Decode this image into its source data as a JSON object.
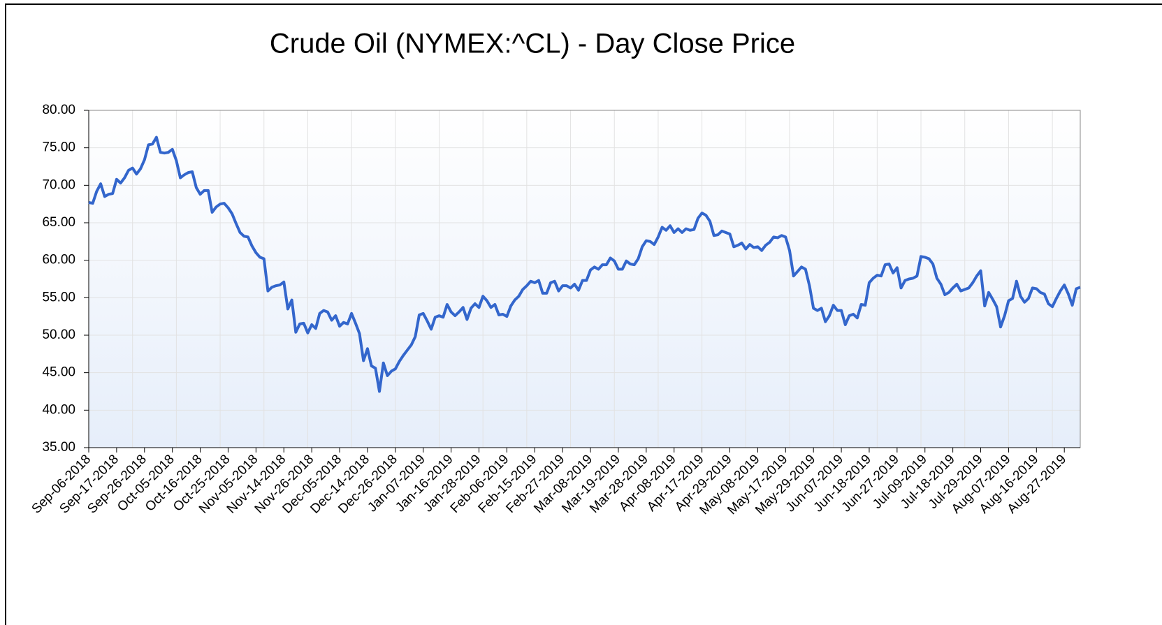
{
  "chart_data": {
    "type": "line",
    "title": "Crude Oil (NYMEX:^CL) - Day Close Price",
    "categories": [
      "Sep-06-2018",
      null,
      null,
      null,
      null,
      null,
      null,
      "Sep-17-2018",
      null,
      null,
      null,
      null,
      null,
      null,
      "Sep-26-2018",
      null,
      null,
      null,
      null,
      null,
      null,
      "Oct-05-2018",
      null,
      null,
      null,
      null,
      null,
      null,
      "Oct-16-2018",
      null,
      null,
      null,
      null,
      null,
      null,
      "Oct-25-2018",
      null,
      null,
      null,
      null,
      null,
      null,
      "Nov-05-2018",
      null,
      null,
      null,
      null,
      null,
      null,
      "Nov-14-2018",
      null,
      null,
      null,
      null,
      null,
      null,
      "Nov-26-2018",
      null,
      null,
      null,
      null,
      null,
      null,
      "Dec-05-2018",
      null,
      null,
      null,
      null,
      null,
      null,
      "Dec-14-2018",
      null,
      null,
      null,
      null,
      null,
      null,
      "Dec-26-2018",
      null,
      null,
      null,
      null,
      null,
      null,
      "Jan-07-2019",
      null,
      null,
      null,
      null,
      null,
      null,
      "Jan-16-2019",
      null,
      null,
      null,
      null,
      null,
      null,
      "Jan-28-2019",
      null,
      null,
      null,
      null,
      null,
      null,
      "Feb-06-2019",
      null,
      null,
      null,
      null,
      null,
      null,
      "Feb-15-2019",
      null,
      null,
      null,
      null,
      null,
      null,
      "Feb-27-2019",
      null,
      null,
      null,
      null,
      null,
      null,
      "Mar-08-2019",
      null,
      null,
      null,
      null,
      null,
      null,
      "Mar-19-2019",
      null,
      null,
      null,
      null,
      null,
      null,
      "Mar-28-2019",
      null,
      null,
      null,
      null,
      null,
      null,
      "Apr-08-2019",
      null,
      null,
      null,
      null,
      null,
      null,
      "Apr-17-2019",
      null,
      null,
      null,
      null,
      null,
      null,
      "Apr-29-2019",
      null,
      null,
      null,
      null,
      null,
      null,
      "May-08-2019",
      null,
      null,
      null,
      null,
      null,
      null,
      "May-17-2019",
      null,
      null,
      null,
      null,
      null,
      null,
      "May-29-2019",
      null,
      null,
      null,
      null,
      null,
      null,
      "Jun-07-2019",
      null,
      null,
      null,
      null,
      null,
      null,
      "Jun-18-2019",
      null,
      null,
      null,
      null,
      null,
      null,
      "Jun-27-2019",
      null,
      null,
      null,
      null,
      null,
      null,
      "Jul-09-2019",
      null,
      null,
      null,
      null,
      null,
      null,
      "Jul-18-2019",
      null,
      null,
      null,
      null,
      null,
      null,
      "Jul-29-2019",
      null,
      null,
      null,
      null,
      null,
      null,
      "Aug-07-2019",
      null,
      null,
      null,
      null,
      null,
      null,
      "Aug-16-2019",
      null,
      null,
      null,
      null,
      null,
      null,
      "Aug-27-2019",
      null,
      null,
      null,
      null
    ],
    "values": [
      67.7,
      67.6,
      69.2,
      70.2,
      68.5,
      68.8,
      68.9,
      70.8,
      70.3,
      71,
      72,
      72.3,
      71.5,
      72.2,
      73.4,
      75.4,
      75.5,
      76.4,
      74.4,
      74.3,
      74.4,
      74.8,
      73.3,
      71,
      71.4,
      71.7,
      71.8,
      69.7,
      68.8,
      69.3,
      69.3,
      66.4,
      67.1,
      67.5,
      67.6,
      67,
      66.2,
      64.9,
      63.7,
      63.2,
      63.1,
      61.9,
      61,
      60.4,
      60.2,
      55.9,
      56.4,
      56.6,
      56.7,
      57.1,
      53.5,
      54.7,
      50.4,
      51.5,
      51.6,
      50.3,
      51.4,
      50.9,
      52.9,
      53.3,
      53.1,
      52,
      52.6,
      51.2,
      51.7,
      51.5,
      52.9,
      51.6,
      50.2,
      46.6,
      48.2,
      45.9,
      45.6,
      42.5,
      46.3,
      44.6,
      45.2,
      45.5,
      46.5,
      47.3,
      48,
      48.7,
      49.8,
      52.7,
      52.9,
      51.9,
      50.8,
      52.4,
      52.6,
      52.4,
      54.1,
      53.1,
      52.6,
      53.1,
      53.7,
      52.1,
      53.6,
      54.2,
      53.7,
      55.2,
      54.6,
      53.7,
      54.1,
      52.7,
      52.8,
      52.5,
      53.9,
      54.7,
      55.2,
      56.1,
      56.6,
      57.2,
      57,
      57.3,
      55.6,
      55.6,
      57,
      57.2,
      55.9,
      56.6,
      56.6,
      56.3,
      56.8,
      56,
      57.3,
      57.3,
      58.7,
      59.1,
      58.8,
      59.4,
      59.4,
      60.3,
      59.9,
      58.8,
      58.8,
      59.9,
      59.5,
      59.4,
      60.2,
      61.8,
      62.6,
      62.5,
      62.1,
      63.1,
      64.4,
      64,
      64.6,
      63.7,
      64.2,
      63.7,
      64.2,
      64,
      64.1,
      65.6,
      66.3,
      66,
      65.2,
      63.3,
      63.4,
      63.9,
      63.7,
      63.5,
      61.8,
      62,
      62.3,
      61.5,
      62.1,
      61.7,
      61.8,
      61.3,
      62,
      62.4,
      63.1,
      63,
      63.3,
      63.1,
      61.3,
      57.9,
      58.5,
      59.1,
      58.8,
      56.6,
      53.6,
      53.3,
      53.6,
      51.8,
      52.6,
      54,
      53.3,
      53.3,
      51.4,
      52.6,
      52.8,
      52.3,
      54.1,
      54,
      57,
      57.6,
      58,
      57.9,
      59.4,
      59.5,
      58.3,
      59,
      56.3,
      57.3,
      57.5,
      57.6,
      57.9,
      60.5,
      60.4,
      60.2,
      59.5,
      57.6,
      56.8,
      55.4,
      55.7,
      56.3,
      56.8,
      55.9,
      56.1,
      56.3,
      57,
      57.9,
      58.6,
      53.9,
      55.7,
      54.8,
      53.8,
      51.1,
      52.6,
      54.6,
      54.9,
      57.2,
      55.2,
      54.4,
      54.9,
      56.3,
      56.2,
      55.7,
      55.5,
      54.2,
      53.8,
      54.9,
      55.9,
      56.7,
      55.5,
      54,
      56.2,
      56.4
    ],
    "color": "#3366cc",
    "ylim": [
      35,
      80
    ],
    "yticks": [
      {
        "value": 35,
        "label": "35.00"
      },
      {
        "value": 40,
        "label": "40.00"
      },
      {
        "value": 45,
        "label": "45.00"
      },
      {
        "value": 50,
        "label": "50.00"
      },
      {
        "value": 55,
        "label": "55.00"
      },
      {
        "value": 60,
        "label": "60.00"
      },
      {
        "value": 65,
        "label": "65.00"
      },
      {
        "value": 70,
        "label": "70.00"
      },
      {
        "value": 75,
        "label": "75.00"
      },
      {
        "value": 80,
        "label": "80.00"
      }
    ],
    "grid": true
  }
}
